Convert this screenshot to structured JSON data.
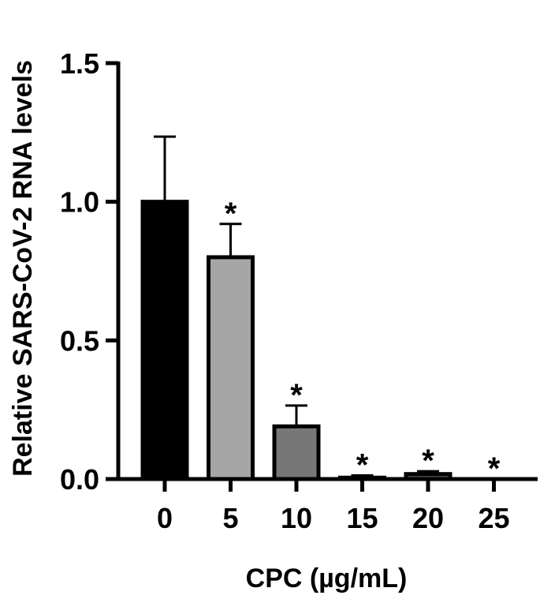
{
  "chart_data": {
    "type": "bar",
    "title": "",
    "xlabel": "CPC (µg/mL)",
    "ylabel": "Relative SARS-CoV-2 RNA levels",
    "categories": [
      "0",
      "5",
      "10",
      "15",
      "20",
      "25"
    ],
    "values": [
      1.0,
      0.8,
      0.19,
      0.005,
      0.018,
      0.0
    ],
    "error_upper": [
      0.235,
      0.12,
      0.075,
      0.008,
      0.01,
      0.0
    ],
    "significance": [
      "",
      "*",
      "*",
      "*",
      "*",
      "*"
    ],
    "bar_colors": [
      "#000000",
      "#a6a6a6",
      "#777777",
      "#555555",
      "#555555",
      "#555555"
    ],
    "ylim": [
      0,
      1.5
    ],
    "yticks": [
      "0.0",
      "0.5",
      "1.0",
      "1.5"
    ],
    "grid": false,
    "legend": "none"
  }
}
